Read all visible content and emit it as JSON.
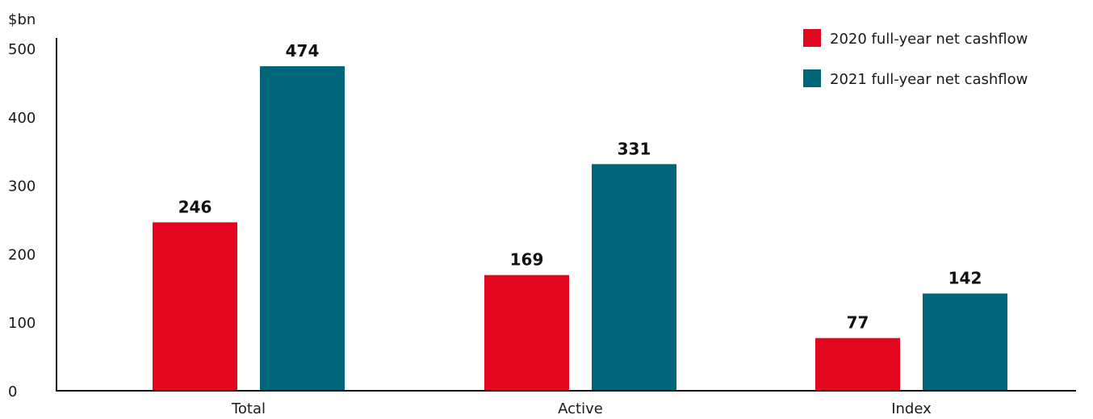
{
  "chart_data": {
    "type": "bar",
    "ylabel": "$bn",
    "ylim": [
      0,
      500
    ],
    "yticks": [
      0,
      100,
      200,
      300,
      400,
      500
    ],
    "categories": [
      "Total",
      "Active",
      "Index"
    ],
    "series": [
      {
        "name": "2020 full-year net cashflow",
        "values": [
          246,
          169,
          77
        ],
        "color": "#e2061f"
      },
      {
        "name": "2021 full-year net cashflow",
        "values": [
          474,
          331,
          142
        ],
        "color": "#006578"
      }
    ],
    "legend_position": "top-right",
    "grid": false
  }
}
